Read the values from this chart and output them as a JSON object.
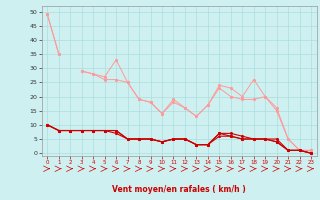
{
  "x": [
    0,
    1,
    2,
    3,
    4,
    5,
    6,
    7,
    8,
    9,
    10,
    11,
    12,
    13,
    14,
    15,
    16,
    17,
    18,
    19,
    20,
    21,
    22,
    23
  ],
  "line1": [
    49,
    35,
    null,
    29,
    28,
    27,
    33,
    25,
    19,
    18,
    14,
    19,
    16,
    13,
    17,
    24,
    23,
    20,
    26,
    20,
    16,
    5,
    1,
    1
  ],
  "line2": [
    49,
    35,
    null,
    29,
    28,
    26,
    26,
    25,
    19,
    18,
    14,
    18,
    16,
    13,
    17,
    23,
    20,
    19,
    19,
    20,
    15,
    5,
    1,
    1
  ],
  "line3_dark": [
    10,
    8,
    8,
    8,
    8,
    8,
    8,
    5,
    5,
    5,
    4,
    5,
    5,
    3,
    3,
    7,
    7,
    6,
    5,
    5,
    5,
    1,
    1,
    0
  ],
  "line4_dark": [
    10,
    8,
    8,
    8,
    8,
    8,
    8,
    5,
    5,
    5,
    4,
    5,
    5,
    3,
    3,
    7,
    6,
    5,
    5,
    5,
    4,
    1,
    1,
    0
  ],
  "line5_dark": [
    10,
    8,
    8,
    8,
    8,
    8,
    7,
    5,
    5,
    5,
    4,
    5,
    5,
    3,
    3,
    6,
    6,
    5,
    5,
    5,
    4,
    1,
    1,
    0
  ],
  "background_color": "#cff0f0",
  "grid_color": "#aadddd",
  "line_light_color": "#ff9999",
  "line_dark_color": "#cc0000",
  "xlabel": "Vent moyen/en rafales ( km/h )",
  "yticks": [
    0,
    5,
    10,
    15,
    20,
    25,
    30,
    35,
    40,
    45,
    50
  ],
  "ylim": [
    -1,
    52
  ],
  "xlim": [
    -0.5,
    23.5
  ]
}
